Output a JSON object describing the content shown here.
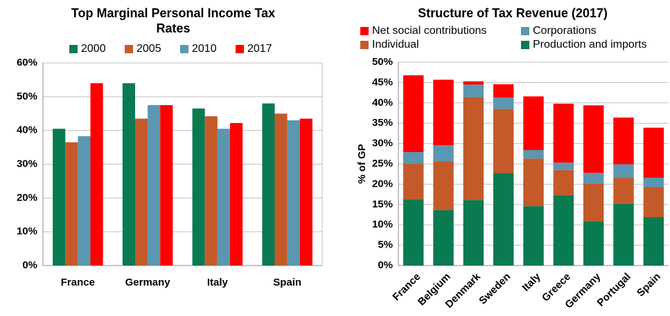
{
  "chart_data": [
    {
      "type": "bar",
      "title": "Top Marginal Personal Income Tax Rates",
      "categories": [
        "France",
        "Germany",
        "Italy",
        "Spain"
      ],
      "series": [
        {
          "name": "2000",
          "color": "#0a7a50",
          "values": [
            40.5,
            54,
            46.5,
            48
          ]
        },
        {
          "name": "2005",
          "color": "#c45a2a",
          "values": [
            36.5,
            43.5,
            44.2,
            45
          ]
        },
        {
          "name": "2010",
          "color": "#5b97b0",
          "values": [
            38.3,
            47.5,
            40.5,
            43
          ]
        },
        {
          "name": "2017",
          "color": "#ff0000",
          "values": [
            54,
            47.5,
            42.2,
            43.5
          ]
        }
      ],
      "ylim": [
        0,
        60
      ],
      "yticks": [
        {
          "value": 0,
          "label": "0%"
        },
        {
          "value": 10,
          "label": "10%"
        },
        {
          "value": 20,
          "label": "20%"
        },
        {
          "value": 30,
          "label": "30%"
        },
        {
          "value": 40,
          "label": "40%"
        },
        {
          "value": 50,
          "label": "50%"
        },
        {
          "value": 60,
          "label": "60%"
        }
      ],
      "grid": true
    },
    {
      "type": "stacked_bar",
      "title": "Structure of Tax Revenue (2017)",
      "ylabel": "% of GP",
      "categories": [
        "France",
        "Belgium",
        "Denmark",
        "Sweden",
        "Italy",
        "Greece",
        "Germany",
        "Portugal",
        "Spain"
      ],
      "series": [
        {
          "name": "Net social contributions",
          "color": "#ff0000",
          "values": [
            18.9,
            16.1,
            0.8,
            3.3,
            13.2,
            14.5,
            16.6,
            11.5,
            12.3
          ]
        },
        {
          "name": "Corporations",
          "color": "#5b97b0",
          "values": [
            2.8,
            4.0,
            3.1,
            2.8,
            2.1,
            1.8,
            2.6,
            3.3,
            2.3
          ]
        },
        {
          "name": "Individual",
          "color": "#c45a2a",
          "values": [
            8.8,
            12.0,
            25.3,
            15.8,
            11.7,
            6.2,
            9.4,
            6.4,
            7.4
          ]
        },
        {
          "name": "Production and imports",
          "color": "#0a7a50",
          "values": [
            16.3,
            13.6,
            16.1,
            22.7,
            14.6,
            17.3,
            10.8,
            15.2,
            11.9
          ]
        }
      ],
      "ylim": [
        0,
        50
      ],
      "yticks": [
        {
          "value": 0,
          "label": "0%"
        },
        {
          "value": 5,
          "label": "5%"
        },
        {
          "value": 10,
          "label": "10%"
        },
        {
          "value": 15,
          "label": "15%"
        },
        {
          "value": 20,
          "label": "20%"
        },
        {
          "value": 25,
          "label": "25%"
        },
        {
          "value": 30,
          "label": "30%"
        },
        {
          "value": 35,
          "label": "35%"
        },
        {
          "value": 40,
          "label": "40%"
        },
        {
          "value": 45,
          "label": "45%"
        },
        {
          "value": 50,
          "label": "50%"
        }
      ],
      "grid": true
    }
  ]
}
